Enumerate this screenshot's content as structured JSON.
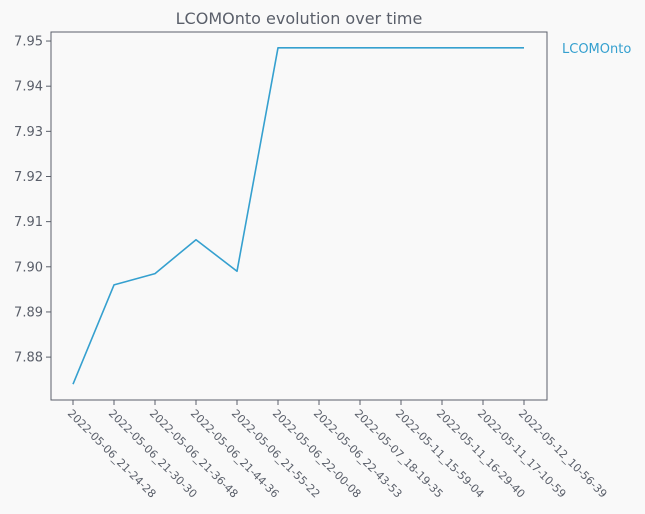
{
  "chart_data": {
    "type": "line",
    "title": "LCOMOnto evolution over time",
    "xlabel": "",
    "ylabel": "",
    "categories": [
      "2022-05-06_21-24-28",
      "2022-05-06_21-30-30",
      "2022-05-06_21-36-48",
      "2022-05-06_21-44-36",
      "2022-05-06_21-55-22",
      "2022-05-06_22-00-08",
      "2022-05-06_22-43-53",
      "2022-05-07_18-19-35",
      "2022-05-11_15-59-04",
      "2022-05-11_16-29-40",
      "2022-05-11_17-10-59",
      "2022-05-12_10-56-39"
    ],
    "series": [
      {
        "name": "LCOMOnto",
        "color": "#35a0cf",
        "values": [
          7.874,
          7.896,
          7.8985,
          7.906,
          7.899,
          7.9485,
          7.9485,
          7.9485,
          7.9485,
          7.9485,
          7.9485,
          7.9485
        ]
      }
    ],
    "yticks": [
      "7.88",
      "7.89",
      "7.90",
      "7.91",
      "7.92",
      "7.93",
      "7.94",
      "7.95"
    ],
    "ylim": [
      7.8705,
      7.952
    ],
    "grid": false,
    "legend": "right",
    "colors": {
      "background": "#f9f9f9",
      "axis": "#5a5f6a",
      "text": "#5a5f6a"
    }
  }
}
